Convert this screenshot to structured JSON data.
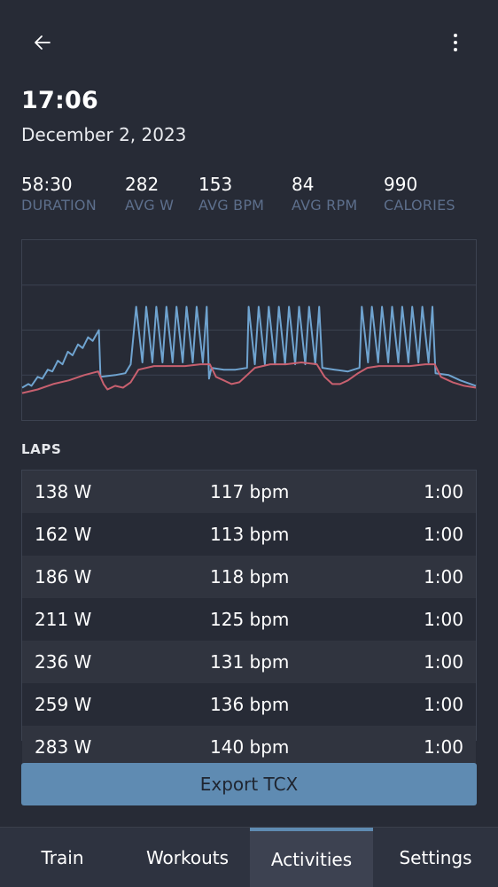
{
  "header": {
    "back_icon": "arrow-left-icon",
    "more_icon": "more-vertical-icon",
    "time": "17:06",
    "date": "December 2, 2023"
  },
  "stats": [
    {
      "value": "58:30",
      "label": "DURATION"
    },
    {
      "value": "282",
      "label": "AVG W"
    },
    {
      "value": "153",
      "label": "AVG BPM"
    },
    {
      "value": "84",
      "label": "AVG RPM"
    },
    {
      "value": "990",
      "label": "CALORIES"
    }
  ],
  "colors": {
    "power": "#6fa3cf",
    "heart_rate": "#c8606f",
    "accent": "#5f8bb2",
    "background": "#272b36"
  },
  "chart_data": {
    "type": "line",
    "x": {
      "min": 0,
      "max": 58.5
    },
    "ylim": [
      0,
      1
    ],
    "grid": true,
    "series": [
      {
        "values": [
          [
            0,
            0.18
          ],
          [
            0.8,
            0.2
          ],
          [
            1.2,
            0.19
          ],
          [
            2,
            0.24
          ],
          [
            2.6,
            0.23
          ],
          [
            3.3,
            0.28
          ],
          [
            3.9,
            0.27
          ],
          [
            4.6,
            0.33
          ],
          [
            5.2,
            0.31
          ],
          [
            5.9,
            0.38
          ],
          [
            6.5,
            0.36
          ],
          [
            7.2,
            0.42
          ],
          [
            7.8,
            0.4
          ],
          [
            8.5,
            0.46
          ],
          [
            9.1,
            0.44
          ],
          [
            9.9,
            0.5
          ],
          [
            10.1,
            0.24
          ],
          [
            12,
            0.25
          ],
          [
            13.3,
            0.26
          ],
          [
            14,
            0.31
          ],
          [
            14.7,
            0.63
          ],
          [
            15.5,
            0.32
          ],
          [
            16,
            0.63
          ],
          [
            16.8,
            0.32
          ],
          [
            17.3,
            0.63
          ],
          [
            18.1,
            0.32
          ],
          [
            18.6,
            0.63
          ],
          [
            19.4,
            0.32
          ],
          [
            19.9,
            0.63
          ],
          [
            20.7,
            0.32
          ],
          [
            21.2,
            0.63
          ],
          [
            22,
            0.32
          ],
          [
            22.5,
            0.63
          ],
          [
            23.3,
            0.32
          ],
          [
            23.8,
            0.63
          ],
          [
            24.1,
            0.23
          ],
          [
            24.4,
            0.29
          ],
          [
            26,
            0.28
          ],
          [
            27.5,
            0.28
          ],
          [
            29,
            0.29
          ],
          [
            29.2,
            0.63
          ],
          [
            30,
            0.31
          ],
          [
            30.5,
            0.63
          ],
          [
            31.3,
            0.31
          ],
          [
            31.8,
            0.63
          ],
          [
            32.6,
            0.31
          ],
          [
            33.1,
            0.63
          ],
          [
            33.9,
            0.31
          ],
          [
            34.4,
            0.63
          ],
          [
            35.2,
            0.31
          ],
          [
            35.7,
            0.63
          ],
          [
            36.5,
            0.31
          ],
          [
            37,
            0.63
          ],
          [
            37.8,
            0.31
          ],
          [
            38.3,
            0.63
          ],
          [
            38.7,
            0.29
          ],
          [
            40.3,
            0.28
          ],
          [
            42,
            0.27
          ],
          [
            43.5,
            0.29
          ],
          [
            43.8,
            0.63
          ],
          [
            44.6,
            0.32
          ],
          [
            45.1,
            0.63
          ],
          [
            45.9,
            0.32
          ],
          [
            46.4,
            0.63
          ],
          [
            47.2,
            0.32
          ],
          [
            47.7,
            0.63
          ],
          [
            48.5,
            0.32
          ],
          [
            49,
            0.63
          ],
          [
            49.8,
            0.32
          ],
          [
            50.3,
            0.63
          ],
          [
            51.1,
            0.32
          ],
          [
            51.6,
            0.63
          ],
          [
            52.4,
            0.32
          ],
          [
            52.9,
            0.63
          ],
          [
            53.3,
            0.26
          ],
          [
            55,
            0.25
          ],
          [
            56.5,
            0.22
          ],
          [
            58.5,
            0.19
          ]
        ]
      },
      {
        "values": [
          [
            0,
            0.15
          ],
          [
            2,
            0.17
          ],
          [
            4,
            0.2
          ],
          [
            6,
            0.22
          ],
          [
            8,
            0.25
          ],
          [
            9.8,
            0.27
          ],
          [
            10.5,
            0.2
          ],
          [
            11,
            0.17
          ],
          [
            12,
            0.19
          ],
          [
            13,
            0.18
          ],
          [
            14,
            0.21
          ],
          [
            15,
            0.28
          ],
          [
            17,
            0.3
          ],
          [
            19,
            0.3
          ],
          [
            21,
            0.3
          ],
          [
            23,
            0.31
          ],
          [
            24.2,
            0.31
          ],
          [
            25,
            0.24
          ],
          [
            26,
            0.22
          ],
          [
            27,
            0.2
          ],
          [
            28,
            0.21
          ],
          [
            29,
            0.25
          ],
          [
            30,
            0.29
          ],
          [
            32,
            0.31
          ],
          [
            34,
            0.31
          ],
          [
            36,
            0.32
          ],
          [
            38,
            0.31
          ],
          [
            39,
            0.24
          ],
          [
            40,
            0.2
          ],
          [
            41,
            0.2
          ],
          [
            42,
            0.22
          ],
          [
            43.3,
            0.26
          ],
          [
            44.5,
            0.29
          ],
          [
            46,
            0.3
          ],
          [
            48,
            0.3
          ],
          [
            50,
            0.3
          ],
          [
            52,
            0.31
          ],
          [
            53.2,
            0.31
          ],
          [
            54,
            0.24
          ],
          [
            55.5,
            0.21
          ],
          [
            57,
            0.19
          ],
          [
            58.5,
            0.18
          ]
        ]
      }
    ]
  },
  "laps_title": "LAPS",
  "laps": [
    {
      "watts": "138 W",
      "bpm": "117 bpm",
      "time": "1:00"
    },
    {
      "watts": "162 W",
      "bpm": "113 bpm",
      "time": "1:00"
    },
    {
      "watts": "186 W",
      "bpm": "118 bpm",
      "time": "1:00"
    },
    {
      "watts": "211 W",
      "bpm": "125 bpm",
      "time": "1:00"
    },
    {
      "watts": "236 W",
      "bpm": "131 bpm",
      "time": "1:00"
    },
    {
      "watts": "259 W",
      "bpm": "136 bpm",
      "time": "1:00"
    },
    {
      "watts": "283 W",
      "bpm": "140 bpm",
      "time": "1:00"
    }
  ],
  "export_label": "Export TCX",
  "tabs": [
    {
      "label": "Train",
      "active": false
    },
    {
      "label": "Workouts",
      "active": false
    },
    {
      "label": "Activities",
      "active": true
    },
    {
      "label": "Settings",
      "active": false
    }
  ]
}
